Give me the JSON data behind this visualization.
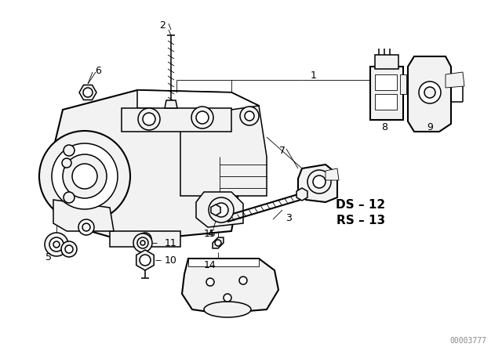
{
  "bg_color": "#ffffff",
  "line_color": "#000000",
  "text_color": "#000000",
  "watermark": "00003777",
  "figsize": [
    6.4,
    4.48
  ],
  "dpi": 100,
  "lw_main": 1.1,
  "lw_thin": 0.6,
  "lw_thick": 1.5
}
